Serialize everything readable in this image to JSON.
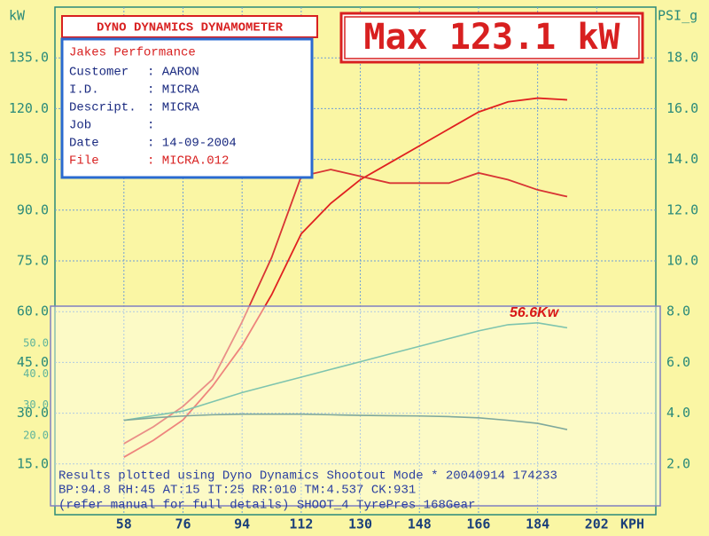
{
  "header": {
    "brand": "DYNO DYNAMICS DYNAMOMETER",
    "max": "Max 123.1 kW"
  },
  "info_box": {
    "title": "Jakes Performance",
    "rows": [
      [
        "Customer",
        ": AARON"
      ],
      [
        "I.D.",
        ": MICRA"
      ],
      [
        "Descript.",
        ": MICRA"
      ],
      [
        "Job",
        ":"
      ],
      [
        "Date",
        ": 14-09-2004"
      ],
      [
        "File",
        ": MICRA.012"
      ]
    ]
  },
  "footer": [
    "Results plotted using Dyno Dynamics Shootout Mode * 20040914 174233",
    "BP:94.8  RH:45 AT:15 IT:25  RR:010 TM:4.537 CK:931",
    "(refer manual for full details) SHOOT_4  TyrePres  168Gear"
  ],
  "chart_data": [
    {
      "type": "line",
      "y_label": "kW",
      "y2_label": "PSI_g",
      "x_label": "KPH",
      "x": [
        58,
        67,
        76,
        85,
        94,
        103,
        112,
        121,
        130,
        139,
        148,
        157,
        166,
        175,
        184,
        193
      ],
      "xlim": [
        37,
        220
      ],
      "xticks": [
        58,
        76,
        94,
        112,
        130,
        148,
        166,
        184,
        202
      ],
      "ylim": [
        0,
        150
      ],
      "yticks": [
        {
          "value": 15,
          "label": "15.0"
        },
        {
          "value": 30,
          "label": "30.0"
        },
        {
          "value": 45,
          "label": "45.0"
        },
        {
          "value": 60,
          "label": "60.0"
        },
        {
          "value": 75,
          "label": "75.0"
        },
        {
          "value": 90,
          "label": "90.0"
        },
        {
          "value": 105,
          "label": "105.0"
        },
        {
          "value": 120,
          "label": "120.0"
        },
        {
          "value": 135,
          "label": "135.0"
        }
      ],
      "y2lim": [
        0,
        20
      ],
      "y2ticks": [
        {
          "value": 2,
          "label": "2.0"
        },
        {
          "value": 4,
          "label": "4.0"
        },
        {
          "value": 6,
          "label": "6.0"
        },
        {
          "value": 8,
          "label": "8.0"
        },
        {
          "value": 10,
          "label": "10.0"
        },
        {
          "value": 12,
          "label": "12.0"
        },
        {
          "value": 14,
          "label": "14.0"
        },
        {
          "value": 16,
          "label": "16.0"
        },
        {
          "value": 18,
          "label": "18.0"
        }
      ],
      "grid": true,
      "series": [
        {
          "color": "#e02020",
          "values": [
            17,
            22,
            28,
            38,
            50,
            65,
            83,
            92,
            99,
            104,
            109,
            114,
            119,
            122,
            123.1,
            122.6
          ]
        },
        {
          "color": "#d83434",
          "values": [
            21,
            26,
            32,
            40,
            57,
            76,
            100,
            102,
            100,
            98,
            98,
            98,
            101,
            99,
            96,
            94
          ]
        }
      ]
    },
    {
      "type": "line",
      "annotation": "56.6Kw",
      "x": [
        58,
        67,
        76,
        85,
        94,
        103,
        112,
        121,
        130,
        139,
        148,
        157,
        166,
        175,
        184,
        193
      ],
      "xlim": [
        37,
        220
      ],
      "ylim": [
        20,
        60
      ],
      "yticks": [
        {
          "value": 20,
          "label": "20.0"
        },
        {
          "value": 30,
          "label": "30.0"
        },
        {
          "value": 40,
          "label": "40.0"
        },
        {
          "value": 50,
          "label": "50.0"
        }
      ],
      "series": [
        {
          "color": "#7ec4ae",
          "values": [
            25,
            26.5,
            28,
            31,
            34,
            36.5,
            39,
            41.5,
            44,
            46.5,
            49,
            51.5,
            54,
            56,
            56.6,
            55
          ]
        },
        {
          "color": "#7ea89c",
          "values": [
            25,
            25.8,
            26.4,
            26.8,
            27,
            27,
            27,
            26.8,
            26.6,
            26.5,
            26.4,
            26.2,
            25.8,
            25,
            24,
            22
          ]
        }
      ]
    }
  ]
}
